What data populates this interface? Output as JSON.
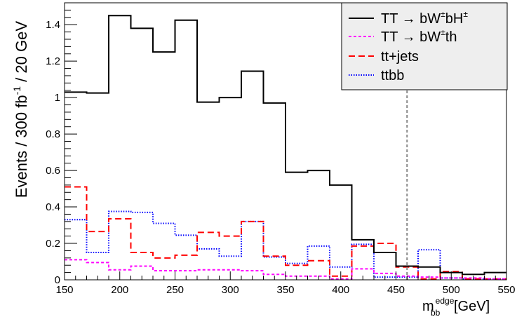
{
  "chart_data": {
    "type": "histogram",
    "title": "",
    "xlabel": {
      "base": "m",
      "sub": "bb",
      "sup": "edge",
      "unit": "[GeV]"
    },
    "ylabel": {
      "pre": "Events / 300 fb",
      "sup": "-1",
      "post": " / 20 GeV"
    },
    "xlim": [
      150,
      550
    ],
    "ylim": [
      0,
      1.52
    ],
    "x_ticks": [
      150,
      200,
      250,
      300,
      350,
      400,
      450,
      500,
      550
    ],
    "x_tick_labels": [
      "150",
      "200",
      "250",
      "300",
      "350",
      "400",
      "450",
      "500",
      "550"
    ],
    "y_ticks": [
      0,
      0.2,
      0.4,
      0.6,
      0.8,
      1,
      1.2,
      1.4
    ],
    "y_tick_labels": [
      "0",
      "0.2",
      "0.4",
      "0.6",
      "0.8",
      "1",
      "1.2",
      "1.4"
    ],
    "bin_edges": [
      150,
      170,
      190,
      210,
      230,
      250,
      270,
      290,
      310,
      330,
      350,
      370,
      390,
      410,
      430,
      450,
      470,
      490,
      510,
      530,
      550
    ],
    "series": [
      {
        "key": "signal",
        "color": "#000000",
        "dash": "none",
        "legend": {
          "pre": "TT → bW",
          "sup1": "±",
          "mid": "bH",
          "sup2": "±"
        },
        "values": [
          1.03,
          1.025,
          1.45,
          1.38,
          1.25,
          1.425,
          0.975,
          1.0,
          1.145,
          0.97,
          0.59,
          0.6,
          0.52,
          0.22,
          0.15,
          0.075,
          0.07,
          0.04,
          0.03,
          0.04
        ]
      },
      {
        "key": "tth",
        "color": "#ff00ff",
        "dash": "dash-short",
        "legend": {
          "pre": "TT → bW",
          "sup1": "±",
          "mid": "th",
          "sup2": ""
        },
        "values": [
          0.11,
          0.095,
          0.055,
          0.075,
          0.05,
          0.05,
          0.055,
          0.055,
          0.05,
          0.03,
          0.02,
          0.02,
          0.005,
          0.06,
          0.035,
          0.02,
          0.015,
          0.01,
          0.01,
          0.005
        ]
      },
      {
        "key": "ttjets",
        "color": "#ff0000",
        "dash": "dash-long",
        "legend": {
          "pre": "tt+jets",
          "sup1": "",
          "mid": "",
          "sup2": ""
        },
        "values": [
          0.51,
          0.265,
          0.335,
          0.15,
          0.12,
          0.135,
          0.26,
          0.24,
          0.32,
          0.13,
          0.08,
          0.105,
          0.02,
          0.185,
          0.2,
          0.07,
          0.005,
          0.045,
          0.005,
          0.005
        ]
      },
      {
        "key": "ttbb",
        "color": "#0000ff",
        "dash": "dot",
        "legend": {
          "pre": "ttbb",
          "sup1": "",
          "mid": "",
          "sup2": ""
        },
        "values": [
          0.33,
          0.15,
          0.375,
          0.37,
          0.31,
          0.245,
          0.17,
          0.13,
          0.32,
          0.125,
          0.09,
          0.185,
          0.07,
          0.195,
          0.015,
          0.015,
          0.165,
          0.01,
          0.005,
          0.005
        ]
      }
    ],
    "cut_line_x": 460,
    "cut_line_color": "#888888",
    "legend_position": "top-right",
    "legend_background": "#eeeeee",
    "grid": false
  }
}
